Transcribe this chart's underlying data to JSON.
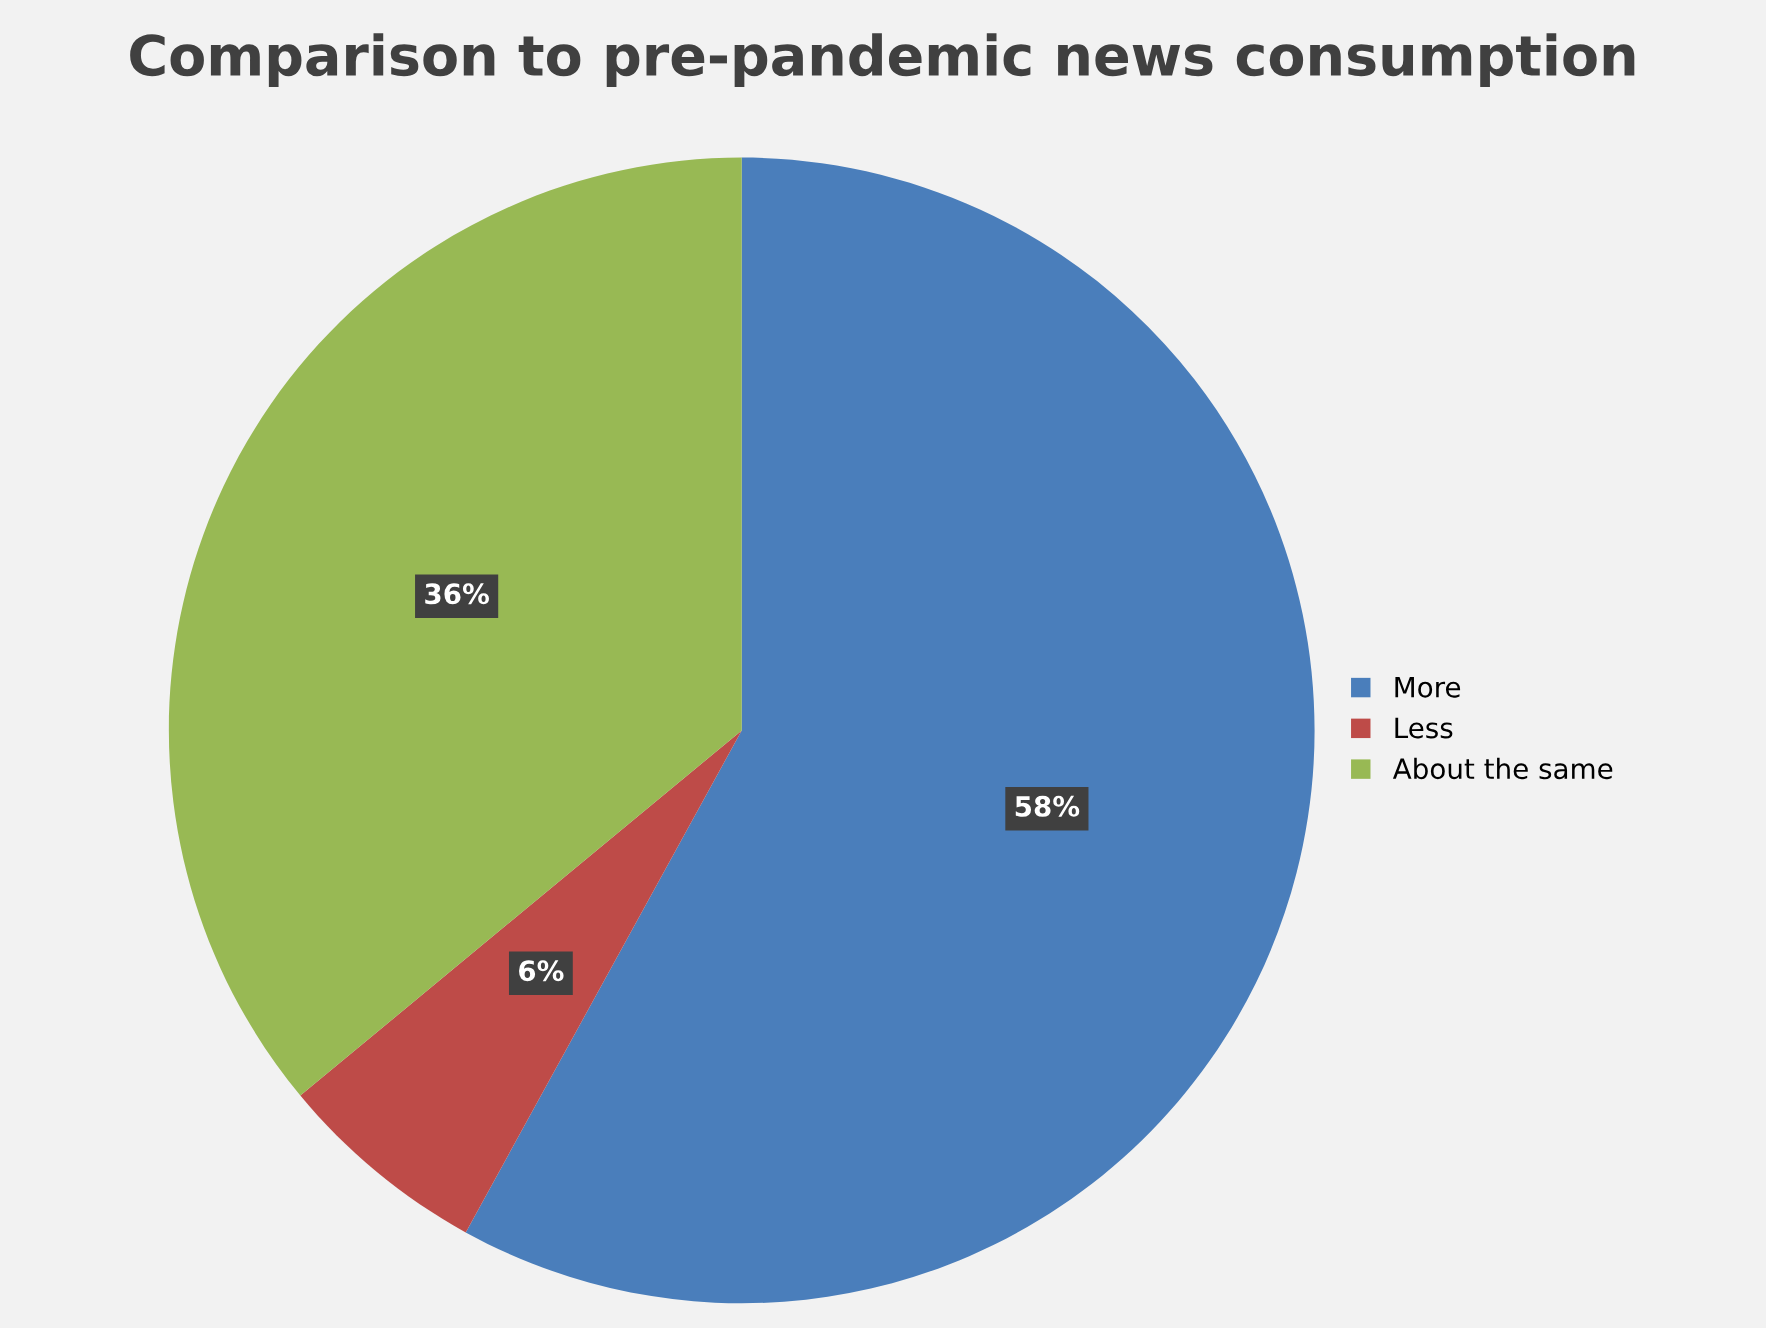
{
  "chart_data": {
    "type": "pie",
    "title": "Comparison to pre-pandemic news consumption",
    "categories": [
      "More",
      "Less",
      "About the same"
    ],
    "values": [
      58,
      6,
      36
    ],
    "colors": [
      "#4a7ebb",
      "#be4b48",
      "#98b954"
    ],
    "value_labels": [
      "58%",
      "6%",
      "36%"
    ],
    "legend": "right"
  }
}
